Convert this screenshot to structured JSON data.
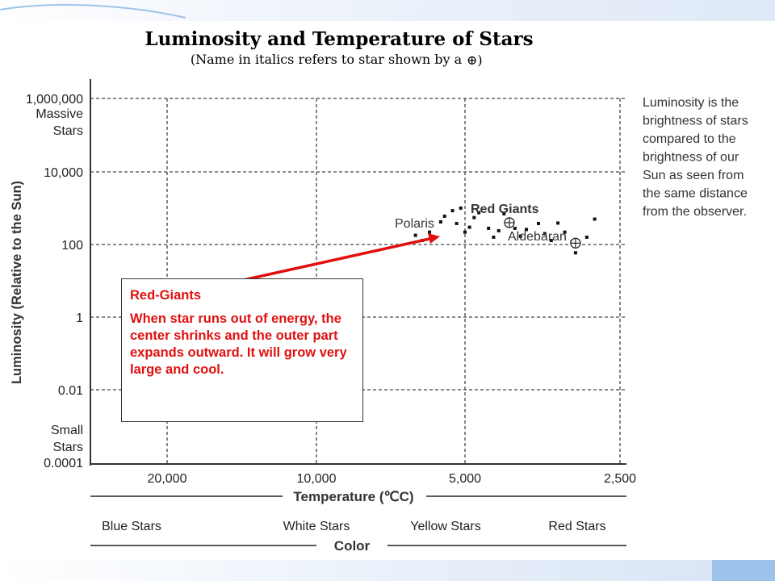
{
  "chart_data": {
    "type": "scatter",
    "title": "Luminosity and Temperature of Stars",
    "subtitle": "(Name in italics refers to star shown by a",
    "xlabel": "Temperature (℃C)",
    "ylabel": "Luminosity (Relative to the Sun)",
    "x_scale": "log-reversed",
    "y_scale": "log",
    "x_ticks": [
      "20,000",
      "10,000",
      "5,000",
      "2,500"
    ],
    "y_ticks": [
      "1,000,000",
      "10,000",
      "100",
      "1",
      "0.01",
      "0.0001"
    ],
    "y_tick_notes": {
      "top": [
        "Massive",
        "Stars"
      ],
      "bottom": [
        "Small",
        "Stars"
      ]
    },
    "color_axis_label": "Color",
    "color_categories": [
      "Blue Stars",
      "White Stars",
      "Yellow Stars",
      "Red Stars"
    ],
    "grid": true,
    "series": [
      {
        "name": "Red Giants",
        "marker": "dot",
        "points": [
          [
            6300,
            180
          ],
          [
            6100,
            130
          ],
          [
            5900,
            220
          ],
          [
            5600,
            420
          ],
          [
            5500,
            600
          ],
          [
            5300,
            850
          ],
          [
            5100,
            1000
          ],
          [
            5200,
            380
          ],
          [
            5000,
            220
          ],
          [
            4900,
            300
          ],
          [
            4800,
            550
          ],
          [
            4700,
            750
          ],
          [
            4500,
            280
          ],
          [
            4400,
            160
          ],
          [
            4300,
            240
          ],
          [
            4200,
            700
          ],
          [
            4100,
            500
          ],
          [
            4000,
            280
          ],
          [
            3900,
            170
          ],
          [
            3800,
            260
          ],
          [
            3600,
            380
          ],
          [
            3500,
            200
          ],
          [
            3400,
            130
          ],
          [
            3300,
            390
          ],
          [
            3200,
            220
          ],
          [
            3100,
            120
          ],
          [
            3050,
            60
          ],
          [
            2900,
            160
          ],
          [
            2800,
            500
          ]
        ]
      }
    ],
    "highlighted": [
      {
        "name": "Polaris",
        "x": 4100,
        "y": 400
      },
      {
        "name": "Aldebaran",
        "x": 3050,
        "y": 110
      }
    ]
  },
  "legend_symbol": "⊕)",
  "side_note": [
    "Luminosity is the",
    "brightness of stars",
    "compared to the",
    "brightness of our",
    "Sun as seen from",
    "the same distance",
    "from the observer."
  ],
  "callout": {
    "title": "Red-Giants",
    "text": "When star runs out of energy, the center shrinks and the outer part expands outward.  It will grow very large and cool."
  },
  "colors": {
    "callout_text": "#e01010",
    "arrow": "#e01010",
    "grid": "#444444",
    "deco": "#9ec3ea"
  }
}
